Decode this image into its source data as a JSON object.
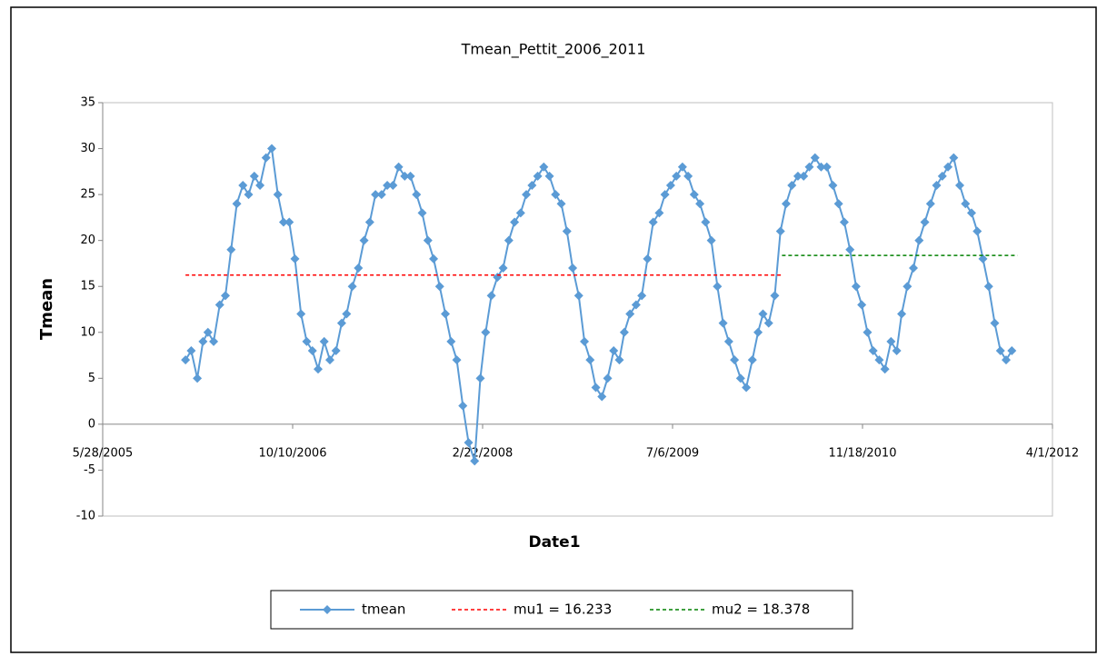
{
  "chart_data": {
    "type": "line",
    "title": "Tmean_Pettit_2006_2011",
    "x_label": "Date1",
    "y_label": "Tmean",
    "xlim": [
      "2005-05-28",
      "2012-04-01"
    ],
    "xticks": [
      {
        "value": "2005-05-28",
        "label": "5/28/2005"
      },
      {
        "value": "2006-10-10",
        "label": "10/10/2006"
      },
      {
        "value": "2008-02-22",
        "label": "2/22/2008"
      },
      {
        "value": "2009-07-06",
        "label": "7/6/2009"
      },
      {
        "value": "2010-11-18",
        "label": "11/18/2010"
      },
      {
        "value": "2012-04-01",
        "label": "4/1/2012"
      }
    ],
    "ylim": [
      -10,
      35
    ],
    "yticks": [
      -10,
      -5,
      0,
      5,
      10,
      15,
      20,
      25,
      30,
      35
    ],
    "series": [
      {
        "name": "tmean",
        "color": "#5b9bd5",
        "style": "solid-marker",
        "x": [
          "2006-01-01",
          "2006-01-16",
          "2006-02-01",
          "2006-02-16",
          "2006-03-01",
          "2006-03-16",
          "2006-04-01",
          "2006-04-16",
          "2006-05-01",
          "2006-05-16",
          "2006-06-01",
          "2006-06-16",
          "2006-07-01",
          "2006-07-16",
          "2006-08-01",
          "2006-08-16",
          "2006-09-01",
          "2006-09-16",
          "2006-10-01",
          "2006-10-16",
          "2006-11-01",
          "2006-11-16",
          "2006-12-01",
          "2006-12-16",
          "2007-01-01",
          "2007-01-16",
          "2007-02-01",
          "2007-02-16",
          "2007-03-01",
          "2007-03-16",
          "2007-04-01",
          "2007-04-16",
          "2007-05-01",
          "2007-05-16",
          "2007-06-01",
          "2007-06-16",
          "2007-07-01",
          "2007-07-16",
          "2007-08-01",
          "2007-08-16",
          "2007-09-01",
          "2007-09-16",
          "2007-10-01",
          "2007-10-16",
          "2007-11-01",
          "2007-11-16",
          "2007-12-01",
          "2007-12-16",
          "2008-01-01",
          "2008-01-16",
          "2008-02-01",
          "2008-02-16",
          "2008-03-01",
          "2008-03-16",
          "2008-04-01",
          "2008-04-16",
          "2008-05-01",
          "2008-05-16",
          "2008-06-01",
          "2008-06-16",
          "2008-07-01",
          "2008-07-16",
          "2008-08-01",
          "2008-08-16",
          "2008-09-01",
          "2008-09-16",
          "2008-10-01",
          "2008-10-16",
          "2008-11-01",
          "2008-11-16",
          "2008-12-01",
          "2008-12-16",
          "2009-01-01",
          "2009-01-16",
          "2009-02-01",
          "2009-02-16",
          "2009-03-01",
          "2009-03-16",
          "2009-04-01",
          "2009-04-16",
          "2009-05-01",
          "2009-05-16",
          "2009-06-01",
          "2009-06-16",
          "2009-07-01",
          "2009-07-16",
          "2009-08-01",
          "2009-08-16",
          "2009-09-01",
          "2009-09-16",
          "2009-10-01",
          "2009-10-16",
          "2009-11-01",
          "2009-11-16",
          "2009-12-01",
          "2009-12-16",
          "2010-01-01",
          "2010-01-16",
          "2010-02-01",
          "2010-02-16",
          "2010-03-01",
          "2010-03-16",
          "2010-04-01",
          "2010-04-16",
          "2010-05-01",
          "2010-05-16",
          "2010-06-01",
          "2010-06-16",
          "2010-07-01",
          "2010-07-16",
          "2010-08-01",
          "2010-08-16",
          "2010-09-01",
          "2010-09-16",
          "2010-10-01",
          "2010-10-16",
          "2010-11-01",
          "2010-11-16",
          "2010-12-01",
          "2010-12-16",
          "2011-01-01",
          "2011-01-16",
          "2011-02-01",
          "2011-02-16",
          "2011-03-01",
          "2011-03-16",
          "2011-04-01",
          "2011-04-16",
          "2011-05-01",
          "2011-05-16",
          "2011-06-01",
          "2011-06-16",
          "2011-07-01",
          "2011-07-16",
          "2011-08-01",
          "2011-08-16",
          "2011-09-01",
          "2011-09-16",
          "2011-10-01",
          "2011-10-16",
          "2011-11-01",
          "2011-11-16",
          "2011-12-01",
          "2011-12-16"
        ],
        "values": [
          7,
          8,
          5,
          9,
          10,
          9,
          13,
          14,
          19,
          24,
          26,
          25,
          27,
          26,
          29,
          30,
          25,
          22,
          22,
          18,
          12,
          9,
          8,
          6,
          9,
          7,
          8,
          11,
          12,
          15,
          17,
          20,
          22,
          25,
          25,
          26,
          26,
          28,
          27,
          27,
          25,
          23,
          20,
          18,
          15,
          12,
          9,
          7,
          2,
          -2,
          -4,
          5,
          10,
          14,
          16,
          17,
          20,
          22,
          23,
          25,
          26,
          27,
          28,
          27,
          25,
          24,
          21,
          17,
          14,
          9,
          7,
          4,
          3,
          5,
          8,
          7,
          10,
          12,
          13,
          14,
          18,
          22,
          23,
          25,
          26,
          27,
          28,
          27,
          25,
          24,
          22,
          20,
          15,
          11,
          9,
          7,
          5,
          4,
          7,
          10,
          12,
          11,
          14,
          21,
          24,
          26,
          27,
          27,
          28,
          29,
          28,
          28,
          26,
          24,
          22,
          19,
          15,
          13,
          10,
          8,
          7,
          6,
          9,
          8,
          12,
          15,
          17,
          20,
          22,
          24,
          26,
          27,
          28,
          29,
          26,
          24,
          23,
          21,
          18,
          15,
          11,
          8,
          7,
          8
        ]
      },
      {
        "name": "mu1 = 16.233",
        "color": "#ff0000",
        "style": "dashed",
        "x": [
          "2006-01-01",
          "2010-04-20"
        ],
        "values": [
          16.233,
          16.233
        ]
      },
      {
        "name": "mu2 = 18.378",
        "color": "#008000",
        "style": "dashed",
        "x": [
          "2010-04-20",
          "2011-12-31"
        ],
        "values": [
          18.378,
          18.378
        ]
      }
    ]
  }
}
